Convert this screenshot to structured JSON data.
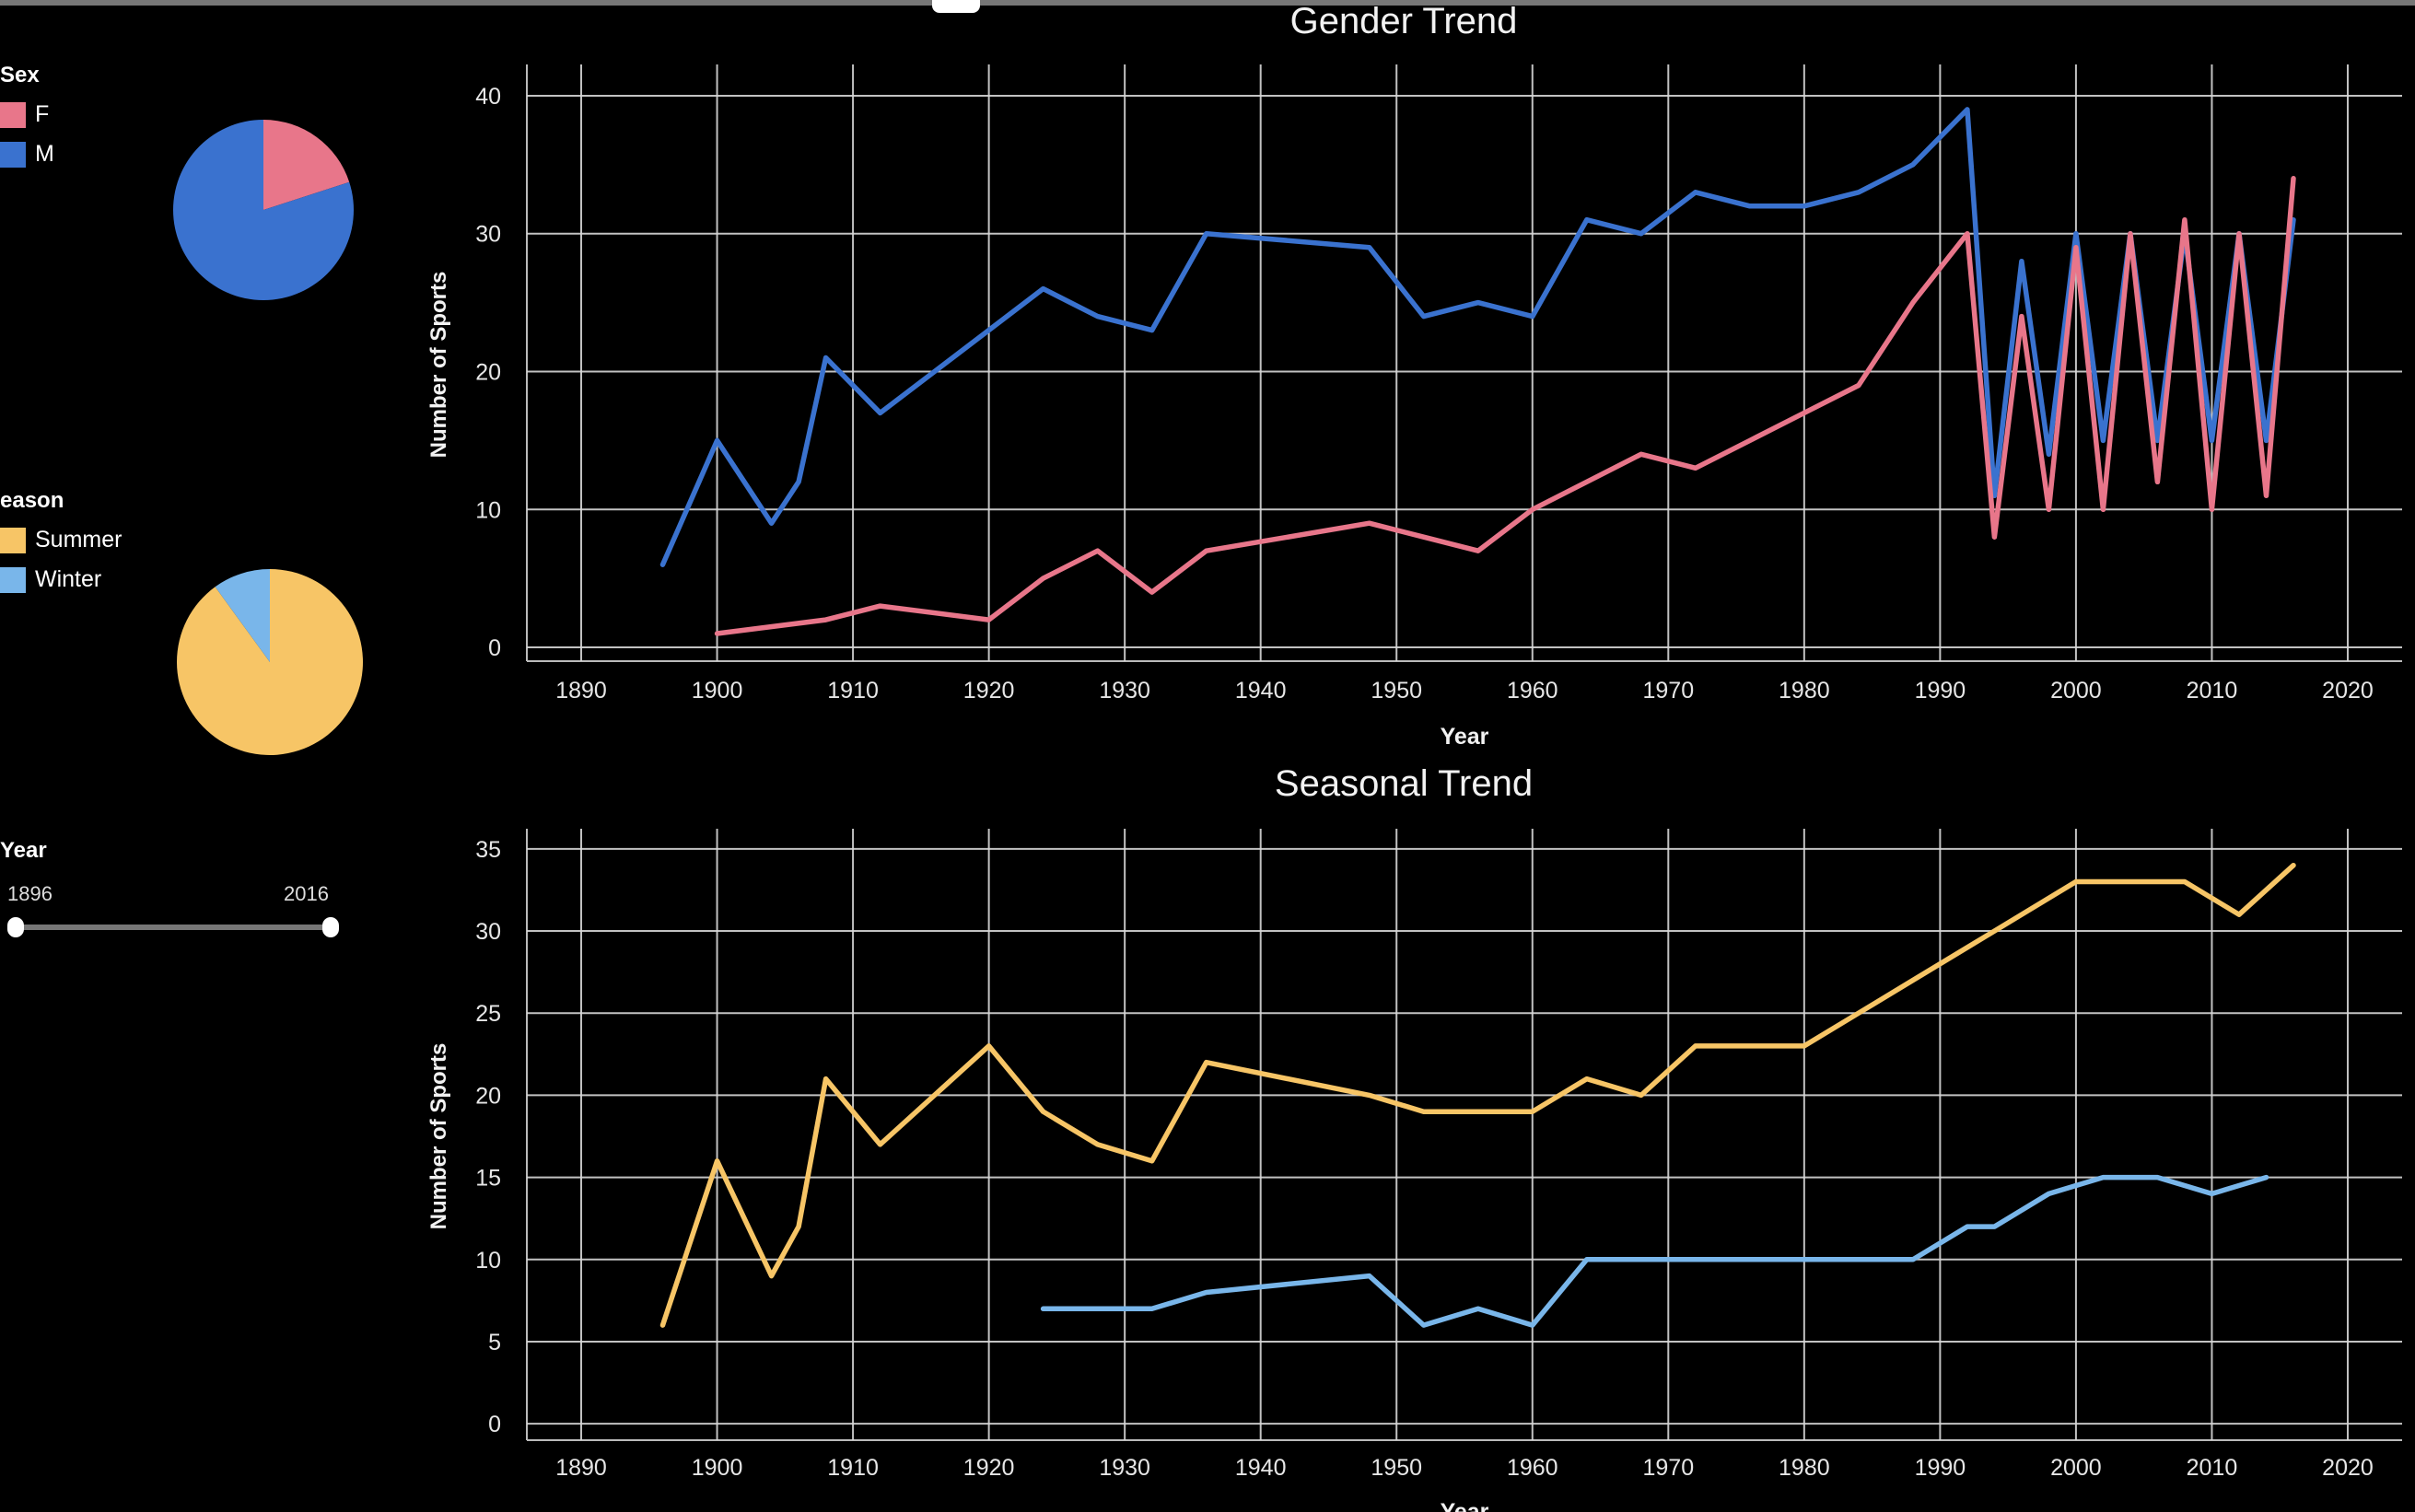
{
  "colors": {
    "female": "#e8768a",
    "male": "#3a72cf",
    "summer": "#f7c566",
    "winter": "#79b6ea",
    "grid": "#d8d8d8",
    "background": "#000000"
  },
  "legend_sex": {
    "title": "Sex",
    "items": [
      {
        "label": "F"
      },
      {
        "label": "M"
      }
    ]
  },
  "legend_season": {
    "title": "eason",
    "items": [
      {
        "label": "Summer"
      },
      {
        "label": "Winter"
      }
    ]
  },
  "year_filter": {
    "title": "Year",
    "min_label": "1896",
    "max_label": "2016"
  },
  "chart_data": [
    {
      "type": "line",
      "title": "Gender Trend",
      "xlabel": "Year",
      "ylabel": "Number of Sports",
      "xlim": [
        1886,
        2024
      ],
      "ylim": [
        -1,
        42
      ],
      "xticks": [
        1890,
        1900,
        1910,
        1920,
        1930,
        1940,
        1950,
        1960,
        1970,
        1980,
        1990,
        2000,
        2010,
        2020
      ],
      "yticks": [
        0,
        10,
        20,
        30,
        40
      ],
      "grid": true,
      "series": [
        {
          "name": "M",
          "color_key": "male",
          "x": [
            1896,
            1900,
            1904,
            1906,
            1908,
            1912,
            1920,
            1924,
            1928,
            1932,
            1936,
            1948,
            1952,
            1956,
            1960,
            1964,
            1968,
            1972,
            1976,
            1980,
            1984,
            1988,
            1992,
            1994,
            1996,
            1998,
            2000,
            2002,
            2004,
            2006,
            2008,
            2010,
            2012,
            2014,
            2016
          ],
          "y": [
            6,
            15,
            9,
            12,
            21,
            17,
            23,
            26,
            24,
            23,
            30,
            29,
            24,
            25,
            24,
            31,
            30,
            33,
            32,
            32,
            33,
            35,
            39,
            11,
            28,
            14,
            30,
            15,
            30,
            15,
            30,
            15,
            30,
            15,
            31
          ]
        },
        {
          "name": "F",
          "color_key": "female",
          "x": [
            1900,
            1908,
            1912,
            1920,
            1924,
            1928,
            1932,
            1936,
            1948,
            1952,
            1956,
            1960,
            1964,
            1968,
            1972,
            1976,
            1980,
            1984,
            1988,
            1992,
            1994,
            1996,
            1998,
            2000,
            2002,
            2004,
            2006,
            2008,
            2010,
            2012,
            2014,
            2016
          ],
          "y": [
            1,
            2,
            3,
            2,
            5,
            7,
            4,
            7,
            9,
            8,
            7,
            10,
            12,
            14,
            13,
            15,
            17,
            19,
            25,
            30,
            8,
            24,
            10,
            29,
            10,
            30,
            12,
            31,
            10,
            30,
            11,
            34
          ]
        }
      ]
    },
    {
      "type": "line",
      "title": "Seasonal Trend",
      "xlabel": "Year",
      "ylabel": "Number of Sports",
      "xlim": [
        1886,
        2024
      ],
      "ylim": [
        -1,
        36
      ],
      "xticks": [
        1890,
        1900,
        1910,
        1920,
        1930,
        1940,
        1950,
        1960,
        1970,
        1980,
        1990,
        2000,
        2010,
        2020
      ],
      "yticks": [
        0,
        5,
        10,
        15,
        20,
        25,
        30,
        35
      ],
      "grid": true,
      "series": [
        {
          "name": "Summer",
          "color_key": "summer",
          "x": [
            1896,
            1900,
            1904,
            1906,
            1908,
            1912,
            1920,
            1924,
            1928,
            1932,
            1936,
            1948,
            1952,
            1956,
            1960,
            1964,
            1968,
            1972,
            1976,
            1980,
            1984,
            1988,
            1992,
            1996,
            2000,
            2004,
            2008,
            2012,
            2016
          ],
          "y": [
            6,
            16,
            9,
            12,
            21,
            17,
            23,
            19,
            17,
            16,
            22,
            20,
            19,
            19,
            19,
            21,
            20,
            23,
            23,
            23,
            25,
            27,
            29,
            31,
            33,
            33,
            33,
            31,
            34
          ]
        },
        {
          "name": "Winter",
          "color_key": "winter",
          "x": [
            1924,
            1928,
            1932,
            1936,
            1948,
            1952,
            1956,
            1960,
            1964,
            1968,
            1972,
            1976,
            1980,
            1984,
            1988,
            1992,
            1994,
            1998,
            2002,
            2006,
            2010,
            2014
          ],
          "y": [
            7,
            7,
            7,
            8,
            9,
            6,
            7,
            6,
            10,
            10,
            10,
            10,
            10,
            10,
            10,
            12,
            12,
            14,
            15,
            15,
            14,
            15
          ]
        }
      ]
    },
    {
      "type": "pie",
      "legend": "Sex",
      "slices": [
        {
          "label": "F",
          "value": 20,
          "color_key": "female"
        },
        {
          "label": "M",
          "value": 80,
          "color_key": "male"
        }
      ]
    },
    {
      "type": "pie",
      "legend": "Season",
      "slices": [
        {
          "label": "Summer",
          "value": 90,
          "color_key": "summer"
        },
        {
          "label": "Winter",
          "value": 10,
          "color_key": "winter"
        }
      ]
    }
  ]
}
